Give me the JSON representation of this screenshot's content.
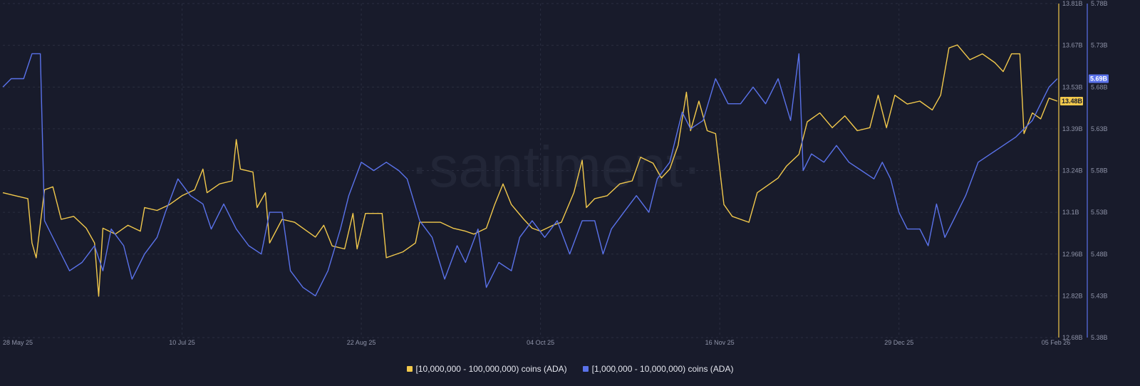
{
  "watermark": "·santiment·",
  "colors": {
    "background": "#181b2b",
    "grid": "#2a2e40",
    "axis_text": "#8e93a8",
    "series_yellow": "#f2c94c",
    "series_blue": "#5a72ea",
    "current_label_text": "#181b2b"
  },
  "chart_data": {
    "type": "line",
    "x_range": [
      "2025-05-28",
      "2026-02-05"
    ],
    "x_ticks": [
      "28 May 25",
      "10 Jul 25",
      "22 Aug 25",
      "04 Oct 25",
      "16 Nov 25",
      "29 Dec 25",
      "05 Feb 26"
    ],
    "y_axes": [
      {
        "id": "left",
        "series": "yellow",
        "range": [
          12.68,
          13.81
        ],
        "ticks": [
          "13.81B",
          "13.67B",
          "13.53B",
          "13.39B",
          "13.24B",
          "13.1B",
          "12.96B",
          "12.82B",
          "12.68B"
        ],
        "current_value_label": "13.48B"
      },
      {
        "id": "right",
        "series": "blue",
        "range": [
          5.38,
          5.78
        ],
        "ticks": [
          "5.78B",
          "5.73B",
          "5.68B",
          "5.63B",
          "5.58B",
          "5.53B",
          "5.48B",
          "5.43B",
          "5.38B"
        ],
        "current_value_label": "5.69B"
      }
    ],
    "series": [
      {
        "name": "[10,000,000 - 100,000,000) coins (ADA)",
        "color": "#f2c94c",
        "axis": "left",
        "points": [
          [
            "2025-05-28",
            13.17
          ],
          [
            "2025-05-31",
            13.16
          ],
          [
            "2025-06-03",
            13.15
          ],
          [
            "2025-06-04",
            13.0
          ],
          [
            "2025-06-05",
            12.95
          ],
          [
            "2025-06-07",
            13.18
          ],
          [
            "2025-06-09",
            13.19
          ],
          [
            "2025-06-11",
            13.08
          ],
          [
            "2025-06-14",
            13.09
          ],
          [
            "2025-06-17",
            13.05
          ],
          [
            "2025-06-19",
            13.0
          ],
          [
            "2025-06-20",
            12.82
          ],
          [
            "2025-06-21",
            13.05
          ],
          [
            "2025-06-24",
            13.03
          ],
          [
            "2025-06-27",
            13.06
          ],
          [
            "2025-06-30",
            13.04
          ],
          [
            "2025-07-01",
            13.12
          ],
          [
            "2025-07-04",
            13.11
          ],
          [
            "2025-07-07",
            13.13
          ],
          [
            "2025-07-10",
            13.16
          ],
          [
            "2025-07-13",
            13.18
          ],
          [
            "2025-07-15",
            13.25
          ],
          [
            "2025-07-16",
            13.17
          ],
          [
            "2025-07-19",
            13.2
          ],
          [
            "2025-07-22",
            13.21
          ],
          [
            "2025-07-23",
            13.35
          ],
          [
            "2025-07-24",
            13.25
          ],
          [
            "2025-07-27",
            13.24
          ],
          [
            "2025-07-28",
            13.12
          ],
          [
            "2025-07-30",
            13.17
          ],
          [
            "2025-07-31",
            13.0
          ],
          [
            "2025-08-03",
            13.08
          ],
          [
            "2025-08-06",
            13.07
          ],
          [
            "2025-08-08",
            13.05
          ],
          [
            "2025-08-11",
            13.02
          ],
          [
            "2025-08-13",
            13.06
          ],
          [
            "2025-08-15",
            12.99
          ],
          [
            "2025-08-18",
            12.98
          ],
          [
            "2025-08-20",
            13.1
          ],
          [
            "2025-08-21",
            12.98
          ],
          [
            "2025-08-23",
            13.1
          ],
          [
            "2025-08-27",
            13.1
          ],
          [
            "2025-08-28",
            12.95
          ],
          [
            "2025-09-01",
            12.97
          ],
          [
            "2025-09-04",
            13.0
          ],
          [
            "2025-09-05",
            13.07
          ],
          [
            "2025-09-10",
            13.07
          ],
          [
            "2025-09-13",
            13.05
          ],
          [
            "2025-09-16",
            13.04
          ],
          [
            "2025-09-18",
            13.03
          ],
          [
            "2025-09-21",
            13.05
          ],
          [
            "2025-09-23",
            13.13
          ],
          [
            "2025-09-25",
            13.2
          ],
          [
            "2025-09-27",
            13.13
          ],
          [
            "2025-09-30",
            13.08
          ],
          [
            "2025-10-02",
            13.05
          ],
          [
            "2025-10-04",
            13.04
          ],
          [
            "2025-10-07",
            13.06
          ],
          [
            "2025-10-09",
            13.07
          ],
          [
            "2025-10-12",
            13.17
          ],
          [
            "2025-10-14",
            13.28
          ],
          [
            "2025-10-15",
            13.12
          ],
          [
            "2025-10-17",
            13.15
          ],
          [
            "2025-10-20",
            13.16
          ],
          [
            "2025-10-23",
            13.2
          ],
          [
            "2025-10-26",
            13.21
          ],
          [
            "2025-10-28",
            13.29
          ],
          [
            "2025-10-31",
            13.27
          ],
          [
            "2025-11-02",
            13.22
          ],
          [
            "2025-11-04",
            13.25
          ],
          [
            "2025-11-06",
            13.33
          ],
          [
            "2025-11-08",
            13.51
          ],
          [
            "2025-11-09",
            13.38
          ],
          [
            "2025-11-11",
            13.48
          ],
          [
            "2025-11-13",
            13.38
          ],
          [
            "2025-11-15",
            13.37
          ],
          [
            "2025-11-17",
            13.13
          ],
          [
            "2025-11-19",
            13.09
          ],
          [
            "2025-11-23",
            13.07
          ],
          [
            "2025-11-25",
            13.17
          ],
          [
            "2025-11-28",
            13.2
          ],
          [
            "2025-11-30",
            13.22
          ],
          [
            "2025-12-02",
            13.26
          ],
          [
            "2025-12-05",
            13.3
          ],
          [
            "2025-12-07",
            13.41
          ],
          [
            "2025-12-10",
            13.44
          ],
          [
            "2025-12-13",
            13.39
          ],
          [
            "2025-12-16",
            13.43
          ],
          [
            "2025-12-19",
            13.38
          ],
          [
            "2025-12-22",
            13.39
          ],
          [
            "2025-12-24",
            13.5
          ],
          [
            "2025-12-26",
            13.39
          ],
          [
            "2025-12-28",
            13.5
          ],
          [
            "2025-12-31",
            13.47
          ],
          [
            "2026-01-03",
            13.48
          ],
          [
            "2026-01-06",
            13.45
          ],
          [
            "2026-01-08",
            13.5
          ],
          [
            "2026-01-10",
            13.66
          ],
          [
            "2026-01-12",
            13.67
          ],
          [
            "2026-01-15",
            13.62
          ],
          [
            "2026-01-18",
            13.64
          ],
          [
            "2026-01-21",
            13.61
          ],
          [
            "2026-01-23",
            13.58
          ],
          [
            "2026-01-25",
            13.64
          ],
          [
            "2026-01-27",
            13.64
          ],
          [
            "2026-01-28",
            13.37
          ],
          [
            "2026-01-30",
            13.44
          ],
          [
            "2026-02-01",
            13.42
          ],
          [
            "2026-02-03",
            13.49
          ],
          [
            "2026-02-05",
            13.48
          ]
        ]
      },
      {
        "name": "[1,000,000 - 10,000,000) coins (ADA)",
        "color": "#5a72ea",
        "axis": "right",
        "points": [
          [
            "2025-05-28",
            5.68
          ],
          [
            "2025-05-30",
            5.69
          ],
          [
            "2025-06-02",
            5.69
          ],
          [
            "2025-06-04",
            5.72
          ],
          [
            "2025-06-06",
            5.72
          ],
          [
            "2025-06-07",
            5.52
          ],
          [
            "2025-06-10",
            5.49
          ],
          [
            "2025-06-13",
            5.46
          ],
          [
            "2025-06-16",
            5.47
          ],
          [
            "2025-06-19",
            5.49
          ],
          [
            "2025-06-21",
            5.46
          ],
          [
            "2025-06-23",
            5.51
          ],
          [
            "2025-06-26",
            5.49
          ],
          [
            "2025-06-28",
            5.45
          ],
          [
            "2025-07-01",
            5.48
          ],
          [
            "2025-07-04",
            5.5
          ],
          [
            "2025-07-06",
            5.53
          ],
          [
            "2025-07-09",
            5.57
          ],
          [
            "2025-07-12",
            5.55
          ],
          [
            "2025-07-15",
            5.54
          ],
          [
            "2025-07-17",
            5.51
          ],
          [
            "2025-07-20",
            5.54
          ],
          [
            "2025-07-23",
            5.51
          ],
          [
            "2025-07-26",
            5.49
          ],
          [
            "2025-07-29",
            5.48
          ],
          [
            "2025-07-31",
            5.53
          ],
          [
            "2025-08-03",
            5.53
          ],
          [
            "2025-08-05",
            5.46
          ],
          [
            "2025-08-08",
            5.44
          ],
          [
            "2025-08-11",
            5.43
          ],
          [
            "2025-08-14",
            5.46
          ],
          [
            "2025-08-17",
            5.51
          ],
          [
            "2025-08-19",
            5.55
          ],
          [
            "2025-08-22",
            5.59
          ],
          [
            "2025-08-25",
            5.58
          ],
          [
            "2025-08-28",
            5.59
          ],
          [
            "2025-08-31",
            5.58
          ],
          [
            "2025-09-02",
            5.57
          ],
          [
            "2025-09-05",
            5.52
          ],
          [
            "2025-09-08",
            5.5
          ],
          [
            "2025-09-11",
            5.45
          ],
          [
            "2025-09-14",
            5.49
          ],
          [
            "2025-09-16",
            5.47
          ],
          [
            "2025-09-19",
            5.51
          ],
          [
            "2025-09-21",
            5.44
          ],
          [
            "2025-09-24",
            5.47
          ],
          [
            "2025-09-27",
            5.46
          ],
          [
            "2025-09-29",
            5.5
          ],
          [
            "2025-10-02",
            5.52
          ],
          [
            "2025-10-05",
            5.5
          ],
          [
            "2025-10-08",
            5.52
          ],
          [
            "2025-10-11",
            5.48
          ],
          [
            "2025-10-14",
            5.52
          ],
          [
            "2025-10-17",
            5.52
          ],
          [
            "2025-10-19",
            5.48
          ],
          [
            "2025-10-21",
            5.51
          ],
          [
            "2025-10-24",
            5.53
          ],
          [
            "2025-10-27",
            5.55
          ],
          [
            "2025-10-30",
            5.53
          ],
          [
            "2025-11-01",
            5.57
          ],
          [
            "2025-11-04",
            5.59
          ],
          [
            "2025-11-07",
            5.65
          ],
          [
            "2025-11-09",
            5.63
          ],
          [
            "2025-11-12",
            5.64
          ],
          [
            "2025-11-15",
            5.69
          ],
          [
            "2025-11-18",
            5.66
          ],
          [
            "2025-11-21",
            5.66
          ],
          [
            "2025-11-24",
            5.68
          ],
          [
            "2025-11-27",
            5.66
          ],
          [
            "2025-11-30",
            5.69
          ],
          [
            "2025-12-03",
            5.64
          ],
          [
            "2025-12-05",
            5.72
          ],
          [
            "2025-12-06",
            5.58
          ],
          [
            "2025-12-08",
            5.6
          ],
          [
            "2025-12-11",
            5.59
          ],
          [
            "2025-12-14",
            5.61
          ],
          [
            "2025-12-17",
            5.59
          ],
          [
            "2025-12-20",
            5.58
          ],
          [
            "2025-12-23",
            5.57
          ],
          [
            "2025-12-25",
            5.59
          ],
          [
            "2025-12-27",
            5.57
          ],
          [
            "2025-12-29",
            5.53
          ],
          [
            "2025-12-31",
            5.51
          ],
          [
            "2026-01-03",
            5.51
          ],
          [
            "2026-01-05",
            5.49
          ],
          [
            "2026-01-07",
            5.54
          ],
          [
            "2026-01-09",
            5.5
          ],
          [
            "2026-01-11",
            5.52
          ],
          [
            "2026-01-14",
            5.55
          ],
          [
            "2026-01-17",
            5.59
          ],
          [
            "2026-01-20",
            5.6
          ],
          [
            "2026-01-23",
            5.61
          ],
          [
            "2026-01-26",
            5.62
          ],
          [
            "2026-01-28",
            5.63
          ],
          [
            "2026-01-30",
            5.64
          ],
          [
            "2026-02-01",
            5.66
          ],
          [
            "2026-02-03",
            5.68
          ],
          [
            "2026-02-05",
            5.69
          ]
        ]
      }
    ],
    "grid": true,
    "legend_position": "bottom-center"
  },
  "legend": [
    {
      "label": "[10,000,000 - 100,000,000) coins (ADA)",
      "color": "#f2c94c"
    },
    {
      "label": "[1,000,000 - 10,000,000) coins (ADA)",
      "color": "#5a72ea"
    }
  ]
}
